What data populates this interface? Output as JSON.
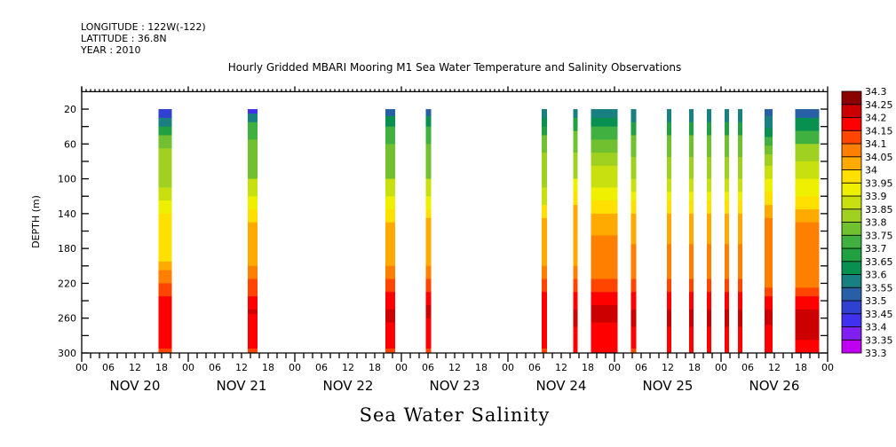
{
  "header": {
    "longitude": "LONGITUDE : 122W(-122)",
    "latitude": "LATITUDE : 36.8N",
    "year": "YEAR : 2010"
  },
  "chart_data": {
    "type": "heatmap",
    "title": "Hourly Gridded MBARI Mooring M1 Sea Water Temperature and Salinity Observations",
    "main_label": "Sea Water Salinity",
    "ylabel": "DEPTH (m)",
    "xlabel": "",
    "ylim": [
      0,
      300
    ],
    "y_reversed": true,
    "yticks": [
      20,
      60,
      100,
      140,
      180,
      220,
      260,
      300
    ],
    "xlim_hours": [
      0,
      168
    ],
    "hour_tick_labels": [
      "00",
      "06",
      "12",
      "18"
    ],
    "day_labels": [
      "NOV 20",
      "NOV 21",
      "NOV 22",
      "NOV 23",
      "NOV 24",
      "NOV 25",
      "NOV 26"
    ],
    "final_tick_label": "00",
    "colorbar": {
      "levels": [
        "33.3",
        "33.35",
        "33.4",
        "33.45",
        "33.5",
        "33.55",
        "33.6",
        "33.65",
        "33.7",
        "33.75",
        "33.8",
        "33.85",
        "33.9",
        "33.95",
        "34",
        "34.05",
        "34.1",
        "34.15",
        "34.2",
        "34.25",
        "34.3"
      ],
      "colors": [
        "#c000f0",
        "#8020f0",
        "#4030f0",
        "#3040d0",
        "#2860a8",
        "#188080",
        "#089050",
        "#20a040",
        "#40b040",
        "#70c030",
        "#a0d020",
        "#c8e010",
        "#eef000",
        "#ffe000",
        "#ffaa00",
        "#ff7f00",
        "#ff4500",
        "#ff0000",
        "#cc0000",
        "#8b0000"
      ]
    },
    "columns": [
      {
        "hours": [
          17.3,
          20.3
        ],
        "profile": [
          [
            20,
            33.45
          ],
          [
            30,
            33.55
          ],
          [
            40,
            33.65
          ],
          [
            50,
            33.75
          ],
          [
            65,
            33.8
          ],
          [
            110,
            33.85
          ],
          [
            125,
            33.9
          ],
          [
            140,
            33.95
          ],
          [
            195,
            34.0
          ],
          [
            205,
            34.05
          ],
          [
            220,
            34.1
          ],
          [
            235,
            34.15
          ],
          [
            295,
            34.1
          ]
        ]
      },
      {
        "hours": [
          37.4,
          39.6
        ],
        "profile": [
          [
            20,
            33.4
          ],
          [
            25,
            33.55
          ],
          [
            35,
            33.7
          ],
          [
            55,
            33.75
          ],
          [
            100,
            33.85
          ],
          [
            120,
            33.9
          ],
          [
            135,
            33.95
          ],
          [
            150,
            34.0
          ],
          [
            200,
            34.05
          ],
          [
            215,
            34.1
          ],
          [
            235,
            34.15
          ],
          [
            250,
            34.2
          ],
          [
            255,
            34.15
          ],
          [
            295,
            34.1
          ]
        ]
      },
      {
        "hours": [
          68.4,
          70.6
        ],
        "profile": [
          [
            20,
            33.5
          ],
          [
            28,
            33.6
          ],
          [
            40,
            33.7
          ],
          [
            60,
            33.75
          ],
          [
            100,
            33.85
          ],
          [
            120,
            33.9
          ],
          [
            135,
            33.95
          ],
          [
            150,
            34.0
          ],
          [
            200,
            34.05
          ],
          [
            215,
            34.1
          ],
          [
            230,
            34.15
          ],
          [
            250,
            34.2
          ],
          [
            265,
            34.15
          ],
          [
            295,
            34.1
          ]
        ]
      },
      {
        "hours": [
          77.5,
          78.7
        ],
        "profile": [
          [
            20,
            33.5
          ],
          [
            28,
            33.6
          ],
          [
            40,
            33.7
          ],
          [
            60,
            33.75
          ],
          [
            100,
            33.85
          ],
          [
            120,
            33.9
          ],
          [
            135,
            33.95
          ],
          [
            145,
            34.0
          ],
          [
            200,
            34.05
          ],
          [
            215,
            34.1
          ],
          [
            230,
            34.15
          ],
          [
            245,
            34.2
          ],
          [
            260,
            34.15
          ],
          [
            295,
            34.1
          ]
        ]
      },
      {
        "hours": [
          103.6,
          104.8
        ],
        "profile": [
          [
            20,
            33.55
          ],
          [
            30,
            33.6
          ],
          [
            40,
            33.65
          ],
          [
            50,
            33.75
          ],
          [
            70,
            33.8
          ],
          [
            110,
            33.85
          ],
          [
            130,
            33.95
          ],
          [
            145,
            34.0
          ],
          [
            200,
            34.05
          ],
          [
            215,
            34.1
          ],
          [
            230,
            34.15
          ],
          [
            295,
            34.1
          ]
        ]
      },
      {
        "hours": [
          110.7,
          111.7
        ],
        "profile": [
          [
            20,
            33.55
          ],
          [
            30,
            33.65
          ],
          [
            45,
            33.75
          ],
          [
            70,
            33.8
          ],
          [
            100,
            33.9
          ],
          [
            115,
            33.95
          ],
          [
            130,
            34.0
          ],
          [
            200,
            34.05
          ],
          [
            215,
            34.1
          ],
          [
            230,
            34.15
          ],
          [
            250,
            34.2
          ],
          [
            270,
            34.15
          ]
        ]
      },
      {
        "hours": [
          114.7,
          120.7
        ],
        "profile": [
          [
            20,
            33.55
          ],
          [
            30,
            33.6
          ],
          [
            40,
            33.7
          ],
          [
            55,
            33.75
          ],
          [
            70,
            33.8
          ],
          [
            85,
            33.85
          ],
          [
            110,
            33.9
          ],
          [
            125,
            33.95
          ],
          [
            140,
            34.0
          ],
          [
            165,
            34.05
          ],
          [
            215,
            34.1
          ],
          [
            230,
            34.15
          ],
          [
            245,
            34.2
          ],
          [
            265,
            34.15
          ]
        ]
      },
      {
        "hours": [
          123.7,
          124.9
        ],
        "profile": [
          [
            20,
            33.55
          ],
          [
            35,
            33.65
          ],
          [
            50,
            33.75
          ],
          [
            75,
            33.8
          ],
          [
            100,
            33.85
          ],
          [
            115,
            33.9
          ],
          [
            125,
            33.95
          ],
          [
            140,
            34.0
          ],
          [
            175,
            34.05
          ],
          [
            215,
            34.1
          ],
          [
            230,
            34.15
          ],
          [
            250,
            34.2
          ],
          [
            270,
            34.15
          ],
          [
            295,
            34.1
          ]
        ]
      },
      {
        "hours": [
          131.8,
          132.8
        ],
        "profile": [
          [
            20,
            33.55
          ],
          [
            35,
            33.65
          ],
          [
            50,
            33.75
          ],
          [
            75,
            33.8
          ],
          [
            100,
            33.85
          ],
          [
            115,
            33.9
          ],
          [
            125,
            33.95
          ],
          [
            140,
            34.0
          ],
          [
            175,
            34.05
          ],
          [
            215,
            34.1
          ],
          [
            230,
            34.15
          ],
          [
            250,
            34.2
          ],
          [
            270,
            34.15
          ]
        ]
      },
      {
        "hours": [
          136.8,
          137.8
        ],
        "profile": [
          [
            20,
            33.55
          ],
          [
            35,
            33.65
          ],
          [
            50,
            33.75
          ],
          [
            75,
            33.8
          ],
          [
            100,
            33.85
          ],
          [
            115,
            33.9
          ],
          [
            125,
            33.95
          ],
          [
            140,
            34.0
          ],
          [
            175,
            34.05
          ],
          [
            215,
            34.1
          ],
          [
            230,
            34.15
          ],
          [
            250,
            34.2
          ],
          [
            270,
            34.15
          ]
        ]
      },
      {
        "hours": [
          140.8,
          141.8
        ],
        "profile": [
          [
            20,
            33.55
          ],
          [
            35,
            33.65
          ],
          [
            50,
            33.75
          ],
          [
            75,
            33.8
          ],
          [
            100,
            33.85
          ],
          [
            115,
            33.9
          ],
          [
            125,
            33.95
          ],
          [
            140,
            34.0
          ],
          [
            175,
            34.05
          ],
          [
            215,
            34.1
          ],
          [
            230,
            34.15
          ],
          [
            250,
            34.2
          ],
          [
            270,
            34.15
          ]
        ]
      },
      {
        "hours": [
          144.8,
          145.8
        ],
        "profile": [
          [
            20,
            33.55
          ],
          [
            35,
            33.65
          ],
          [
            50,
            33.75
          ],
          [
            75,
            33.8
          ],
          [
            100,
            33.85
          ],
          [
            115,
            33.9
          ],
          [
            125,
            33.95
          ],
          [
            140,
            34.0
          ],
          [
            175,
            34.05
          ],
          [
            215,
            34.1
          ],
          [
            230,
            34.15
          ],
          [
            250,
            34.2
          ],
          [
            270,
            34.15
          ]
        ]
      },
      {
        "hours": [
          147.8,
          148.8
        ],
        "profile": [
          [
            20,
            33.55
          ],
          [
            35,
            33.65
          ],
          [
            50,
            33.75
          ],
          [
            75,
            33.8
          ],
          [
            100,
            33.85
          ],
          [
            115,
            33.9
          ],
          [
            125,
            33.95
          ],
          [
            140,
            34.0
          ],
          [
            175,
            34.05
          ],
          [
            215,
            34.1
          ],
          [
            230,
            34.15
          ],
          [
            250,
            34.2
          ],
          [
            270,
            34.15
          ]
        ]
      },
      {
        "hours": [
          153.8,
          155.6
        ],
        "profile": [
          [
            20,
            33.5
          ],
          [
            28,
            33.55
          ],
          [
            42,
            33.6
          ],
          [
            52,
            33.7
          ],
          [
            62,
            33.75
          ],
          [
            72,
            33.8
          ],
          [
            85,
            33.85
          ],
          [
            100,
            33.9
          ],
          [
            115,
            33.95
          ],
          [
            130,
            34.0
          ],
          [
            145,
            34.05
          ],
          [
            225,
            34.1
          ],
          [
            235,
            34.15
          ],
          [
            250,
            34.2
          ],
          [
            268,
            34.15
          ]
        ]
      },
      {
        "hours": [
          160.7,
          166.1
        ],
        "profile": [
          [
            20,
            33.5
          ],
          [
            30,
            33.6
          ],
          [
            45,
            33.7
          ],
          [
            60,
            33.8
          ],
          [
            80,
            33.85
          ],
          [
            100,
            33.9
          ],
          [
            120,
            33.95
          ],
          [
            135,
            34.0
          ],
          [
            150,
            34.05
          ],
          [
            225,
            34.1
          ],
          [
            235,
            34.15
          ],
          [
            250,
            34.2
          ],
          [
            285,
            34.15
          ]
        ]
      }
    ]
  }
}
